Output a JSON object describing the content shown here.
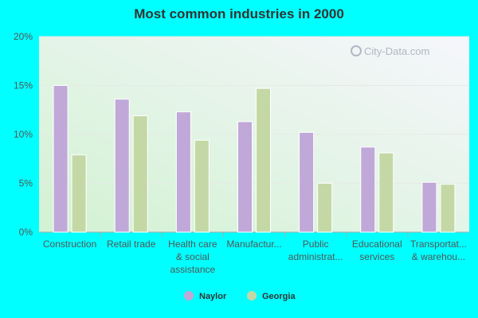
{
  "chart_data": {
    "type": "bar",
    "title": "Most common industries in 2000",
    "categories": [
      [
        "Construction"
      ],
      [
        "Retail trade"
      ],
      [
        "Health care",
        "& social",
        "assistance"
      ],
      [
        "Manufactur..."
      ],
      [
        "Public",
        "administrat..."
      ],
      [
        "Educational",
        "services"
      ],
      [
        "Transportat...",
        "& warehou..."
      ]
    ],
    "series": [
      {
        "name": "Naylor",
        "color": "#c0a8d8",
        "values": [
          15.0,
          13.6,
          12.3,
          11.3,
          10.2,
          8.7,
          5.1
        ]
      },
      {
        "name": "Georgia",
        "color": "#c4d8a6",
        "values": [
          7.9,
          11.9,
          9.4,
          14.7,
          5.0,
          8.1,
          4.9
        ]
      }
    ],
    "ylim": [
      0,
      20
    ],
    "yticks": [
      "0%",
      "5%",
      "10%",
      "15%",
      "20%"
    ],
    "ytick_values": [
      0,
      5,
      10,
      15,
      20
    ],
    "legend_position": "bottom-center",
    "watermark": "City-Data.com"
  }
}
